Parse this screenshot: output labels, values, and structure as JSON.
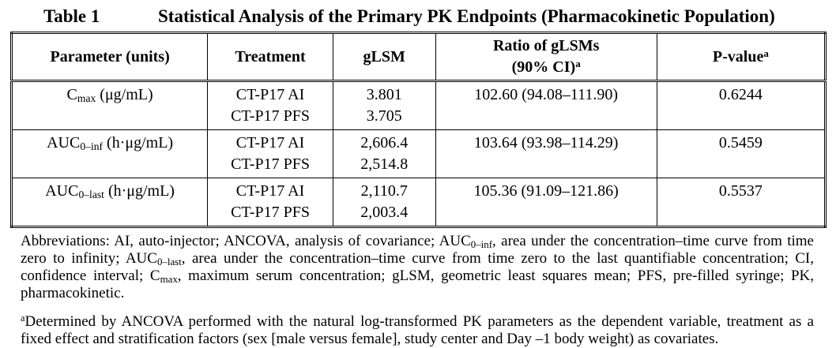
{
  "page": {
    "background_color": "#ffffff",
    "text_color": "#000000",
    "border_color": "#000000"
  },
  "title": {
    "label": "Table 1",
    "text": "Statistical Analysis of the Primary PK Endpoints (Pharmacokinetic Population)"
  },
  "table": {
    "headers": {
      "parameter": "Parameter (units)",
      "treatment": "Treatment",
      "glsm": "gLSM",
      "ratio_line1": "Ratio of gLSMs",
      "ratio_line2": "(90% CI)",
      "ratio_sup": "a",
      "pvalue": "P-value",
      "pvalue_sup": "a"
    },
    "rows": [
      {
        "parameter": {
          "base": "C",
          "sub": "max",
          "unit": " (μg/mL)"
        },
        "treatments": [
          "CT-P17 AI",
          "CT-P17 PFS"
        ],
        "glsm": [
          "3.801",
          "3.705"
        ],
        "ratio": "102.60 (94.08–111.90)",
        "pvalue": "0.6244"
      },
      {
        "parameter": {
          "base": "AUC",
          "sub": "0–inf",
          "unit": " (h·μg/mL)"
        },
        "treatments": [
          "CT-P17 AI",
          "CT-P17 PFS"
        ],
        "glsm": [
          "2,606.4",
          "2,514.8"
        ],
        "ratio": "103.64 (93.98–114.29)",
        "pvalue": "0.5459"
      },
      {
        "parameter": {
          "base": "AUC",
          "sub": "0–last",
          "unit": " (h·μg/mL)"
        },
        "treatments": [
          "CT-P17 AI",
          "CT-P17 PFS"
        ],
        "glsm": [
          "2,110.7",
          "2,003.4"
        ],
        "ratio": "105.36 (91.09–121.86)",
        "pvalue": "0.5537"
      }
    ]
  },
  "footnotes": {
    "abbreviations": [
      {
        "t": "text",
        "v": "Abbreviations: AI, auto-injector; ANCOVA, analysis of covariance; AUC"
      },
      {
        "t": "sub",
        "v": "0–inf"
      },
      {
        "t": "text",
        "v": ", area under the concentration–time curve from time zero to infinity; AUC"
      },
      {
        "t": "sub",
        "v": "0–last"
      },
      {
        "t": "text",
        "v": ", area under the concentration–time curve from time zero to the last quantifiable concentration; CI, confidence interval; C"
      },
      {
        "t": "sub",
        "v": "max"
      },
      {
        "t": "text",
        "v": ", maximum serum concentration; gLSM, geometric least squares mean; PFS, pre-filled syringe; PK, pharmacokinetic."
      }
    ],
    "note_a": [
      {
        "t": "sup",
        "v": "a"
      },
      {
        "t": "text",
        "v": "Determined by ANCOVA performed with the natural log-transformed PK parameters as the dependent variable, treatment as a fixed effect and stratification factors (sex [male versus female], study center and Day –1 body weight) as covariates."
      }
    ]
  }
}
